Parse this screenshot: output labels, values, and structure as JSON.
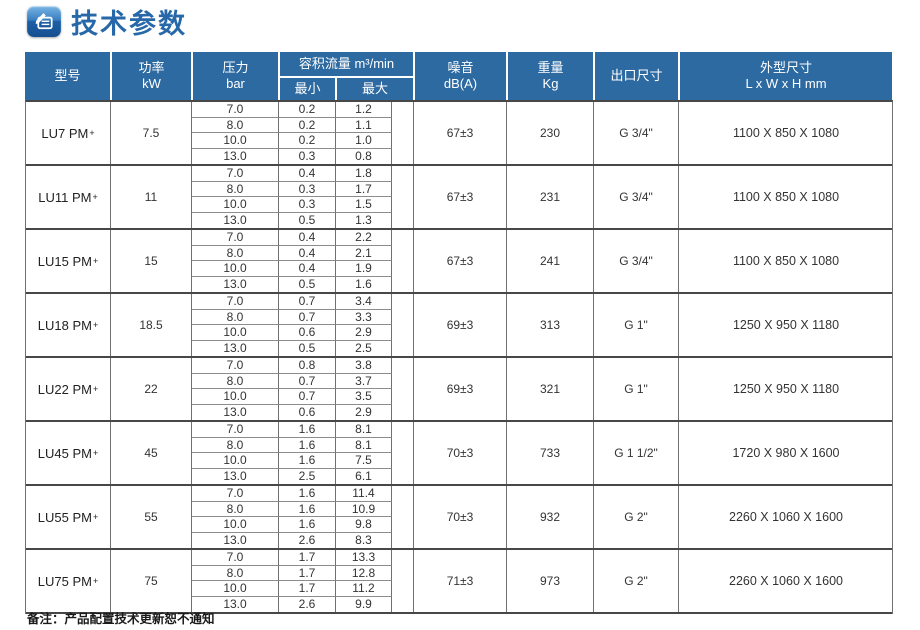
{
  "page_title": {
    "text": "技术参数"
  },
  "colors": {
    "header_blue": "#2d6aa1",
    "title_blue": "#2768a9",
    "border_dark": "#474747",
    "border_light": "#8c8c8c",
    "text": "#333333"
  },
  "table": {
    "header": {
      "model": "型号",
      "power_line1": "功率",
      "power_line2": "kW",
      "pressure_line1": "压力",
      "pressure_line2": "bar",
      "flow": "容积流量  m³/min",
      "flow_min": "最小",
      "flow_max": "最大",
      "noise_line1": "噪音",
      "noise_line2": "dB(A)",
      "weight_line1": "重量",
      "weight_line2": "Kg",
      "outlet": "出口尺寸",
      "dims_line1": "外型尺寸",
      "dims_line2": "L x W x H mm"
    },
    "rows": [
      {
        "model": "LU7 PM+",
        "power": "7.5",
        "pressures": [
          "7.0",
          "8.0",
          "10.0",
          "13.0"
        ],
        "flow_min": [
          "0.2",
          "0.2",
          "0.2",
          "0.3"
        ],
        "flow_max": [
          "1.2",
          "1.1",
          "1.0",
          "0.8"
        ],
        "noise": "67±3",
        "weight": "230",
        "outlet": "G 3/4\"",
        "dims": "1100 X 850 X 1080"
      },
      {
        "model": "LU11 PM+",
        "power": "11",
        "pressures": [
          "7.0",
          "8.0",
          "10.0",
          "13.0"
        ],
        "flow_min": [
          "0.4",
          "0.3",
          "0.3",
          "0.5"
        ],
        "flow_max": [
          "1.8",
          "1.7",
          "1.5",
          "1.3"
        ],
        "noise": "67±3",
        "weight": "231",
        "outlet": "G 3/4\"",
        "dims": "1100 X 850 X 1080"
      },
      {
        "model": "LU15 PM+",
        "power": "15",
        "pressures": [
          "7.0",
          "8.0",
          "10.0",
          "13.0"
        ],
        "flow_min": [
          "0.4",
          "0.4",
          "0.4",
          "0.5"
        ],
        "flow_max": [
          "2.2",
          "2.1",
          "1.9",
          "1.6"
        ],
        "noise": "67±3",
        "weight": "241",
        "outlet": "G 3/4\"",
        "dims": "1100 X 850 X 1080"
      },
      {
        "model": "LU18 PM+",
        "power": "18.5",
        "pressures": [
          "7.0",
          "8.0",
          "10.0",
          "13.0"
        ],
        "flow_min": [
          "0.7",
          "0.7",
          "0.6",
          "0.5"
        ],
        "flow_max": [
          "3.4",
          "3.3",
          "2.9",
          "2.5"
        ],
        "noise": "69±3",
        "weight": "313",
        "outlet": "G 1\"",
        "dims": "1250 X 950 X 1180"
      },
      {
        "model": "LU22 PM+",
        "power": "22",
        "pressures": [
          "7.0",
          "8.0",
          "10.0",
          "13.0"
        ],
        "flow_min": [
          "0.8",
          "0.7",
          "0.7",
          "0.6"
        ],
        "flow_max": [
          "3.8",
          "3.7",
          "3.5",
          "2.9"
        ],
        "noise": "69±3",
        "weight": "321",
        "outlet": "G 1\"",
        "dims": "1250 X 950 X 1180"
      },
      {
        "model": "LU45 PM+",
        "power": "45",
        "pressures": [
          "7.0",
          "8.0",
          "10.0",
          "13.0"
        ],
        "flow_min": [
          "1.6",
          "1.6",
          "1.6",
          "2.5"
        ],
        "flow_max": [
          "8.1",
          "8.1",
          "7.5",
          "6.1"
        ],
        "noise": "70±3",
        "weight": "733",
        "outlet": "G 1 1/2\"",
        "dims": "1720 X 980 X 1600"
      },
      {
        "model": "LU55 PM+",
        "power": "55",
        "pressures": [
          "7.0",
          "8.0",
          "10.0",
          "13.0"
        ],
        "flow_min": [
          "1.6",
          "1.6",
          "1.6",
          "2.6"
        ],
        "flow_max": [
          "11.4",
          "10.9",
          "9.8",
          "8.3"
        ],
        "noise": "70±3",
        "weight": "932",
        "outlet": "G 2\"",
        "dims": "2260 X 1060 X 1600"
      },
      {
        "model": "LU75 PM+",
        "power": "75",
        "pressures": [
          "7.0",
          "8.0",
          "10.0",
          "13.0"
        ],
        "flow_min": [
          "1.7",
          "1.7",
          "1.7",
          "2.6"
        ],
        "flow_max": [
          "13.3",
          "12.8",
          "11.2",
          "9.9"
        ],
        "noise": "71±3",
        "weight": "973",
        "outlet": "G 2\"",
        "dims": "2260 X 1060 X 1600"
      }
    ]
  },
  "note": "备注：产品配置技术更新恕不通知"
}
